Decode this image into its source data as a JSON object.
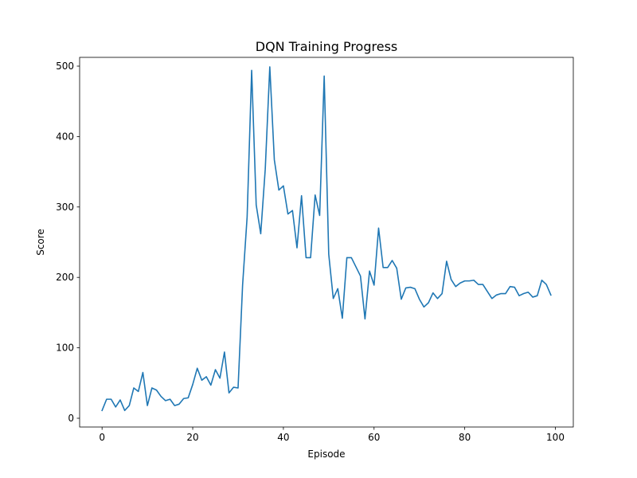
{
  "chart_data": {
    "type": "line",
    "title": "DQN Training Progress",
    "xlabel": "Episode",
    "ylabel": "Score",
    "xlim": [
      -4.95,
      103.95
    ],
    "ylim": [
      -12.45,
      512.45
    ],
    "xticks": [
      0,
      20,
      40,
      60,
      80,
      100
    ],
    "yticks": [
      0,
      100,
      200,
      300,
      400,
      500
    ],
    "grid": false,
    "legend": "none",
    "series": [
      {
        "name": "Score",
        "color": "#1f77b4",
        "x": [
          0,
          1,
          2,
          3,
          4,
          5,
          6,
          7,
          8,
          9,
          10,
          11,
          12,
          13,
          14,
          15,
          16,
          17,
          18,
          19,
          20,
          21,
          22,
          23,
          24,
          25,
          26,
          27,
          28,
          29,
          30,
          31,
          32,
          33,
          34,
          35,
          36,
          37,
          38,
          39,
          40,
          41,
          42,
          43,
          44,
          45,
          46,
          47,
          48,
          49,
          50,
          51,
          52,
          53,
          54,
          55,
          56,
          57,
          58,
          59,
          60,
          61,
          62,
          63,
          64,
          65,
          66,
          67,
          68,
          69,
          70,
          71,
          72,
          73,
          74,
          75,
          76,
          77,
          78,
          79,
          80,
          81,
          82,
          83,
          84,
          85,
          86,
          87,
          88,
          89,
          90,
          91,
          92,
          93,
          94,
          95,
          96,
          97,
          98,
          99
        ],
        "values": [
          11,
          27,
          27,
          16,
          26,
          11,
          18,
          43,
          38,
          65,
          18,
          43,
          40,
          31,
          25,
          27,
          18,
          20,
          28,
          29,
          48,
          71,
          54,
          59,
          47,
          69,
          57,
          94,
          36,
          44,
          43,
          189,
          286,
          494,
          303,
          262,
          354,
          499,
          367,
          324,
          330,
          290,
          295,
          242,
          316,
          228,
          228,
          317,
          288,
          486,
          233,
          170,
          184,
          142,
          228,
          228,
          215,
          202,
          141,
          209,
          189,
          270,
          214,
          214,
          224,
          213,
          169,
          185,
          186,
          184,
          169,
          158,
          164,
          178,
          170,
          177,
          223,
          197,
          187,
          192,
          195,
          195,
          196,
          190,
          190,
          180,
          170,
          175,
          177,
          177,
          187,
          186,
          174,
          177,
          179,
          172,
          174,
          196,
          190,
          175
        ]
      }
    ]
  }
}
